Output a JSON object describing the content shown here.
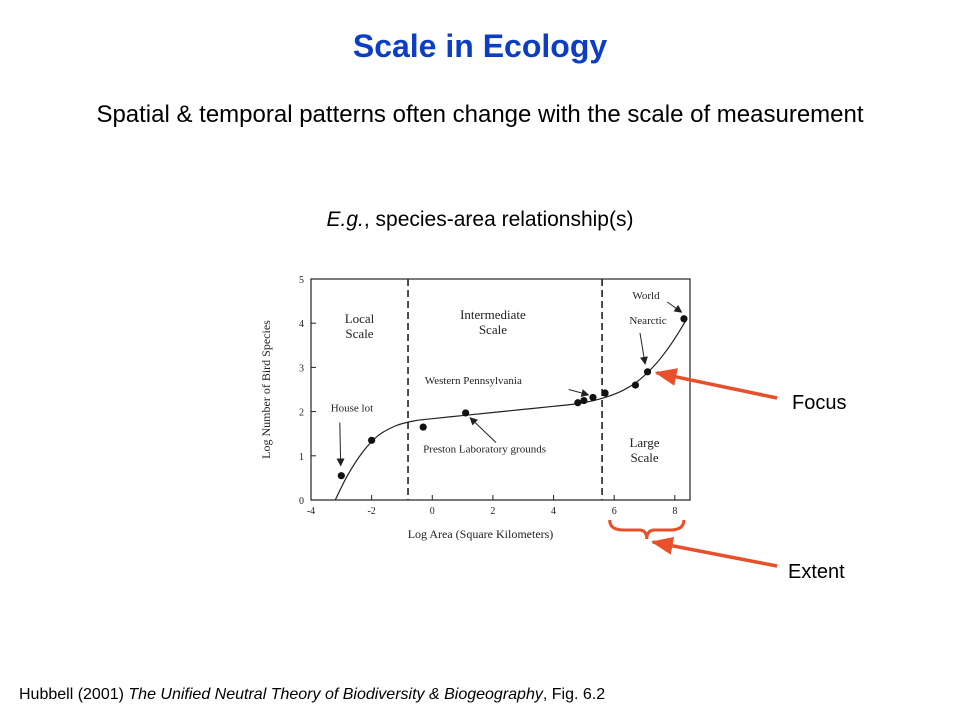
{
  "slide": {
    "title": "Scale in Ecology",
    "subtitle": "Spatial & temporal patterns often change with the scale of measurement",
    "example_italic": "E.g.",
    "example_rest": ", species-area relationship(s)"
  },
  "callouts": {
    "focus": "Focus",
    "extent": "Extent"
  },
  "citation": {
    "prefix": "Hubbell (2001) ",
    "book": "The Unified Neutral Theory of Biodiversity & Biogeography",
    "suffix": ", Fig. 6.2"
  },
  "colors": {
    "title": "#0b3ec4",
    "arrow": "#e8502c"
  },
  "chart_data": {
    "type": "scatter",
    "xlabel": "Log Area (Square Kilometers)",
    "ylabel": "Log Number of Bird Species",
    "xlim": [
      -4,
      8.5
    ],
    "ylim": [
      0,
      5
    ],
    "xticks": [
      -4,
      -2,
      0,
      2,
      4,
      6,
      8
    ],
    "yticks": [
      0,
      1,
      2,
      3,
      4,
      5
    ],
    "grid": false,
    "regions": [
      {
        "label": "Local Scale",
        "x_start": -4,
        "x_end": -0.8
      },
      {
        "label": "Intermediate Scale",
        "x_start": -0.8,
        "x_end": 5.6
      },
      {
        "label": "Large Scale",
        "x_start": 5.6,
        "x_end": 8.5
      }
    ],
    "boundaries": [
      -0.8,
      5.6
    ],
    "points": [
      {
        "x": -3.0,
        "y": 0.55
      },
      {
        "x": -2.0,
        "y": 1.35
      },
      {
        "x": -0.3,
        "y": 1.65
      },
      {
        "x": 1.1,
        "y": 1.97
      },
      {
        "x": 4.8,
        "y": 2.2
      },
      {
        "x": 5.0,
        "y": 2.25
      },
      {
        "x": 5.3,
        "y": 2.32
      },
      {
        "x": 5.7,
        "y": 2.42
      },
      {
        "x": 6.7,
        "y": 2.6
      },
      {
        "x": 7.1,
        "y": 2.9
      },
      {
        "x": 8.3,
        "y": 4.1
      }
    ],
    "curve": [
      {
        "x": -3.2,
        "y": 0
      },
      {
        "x": -2.8,
        "y": 0.55
      },
      {
        "x": -2.3,
        "y": 1.08
      },
      {
        "x": -1.8,
        "y": 1.45
      },
      {
        "x": -1.2,
        "y": 1.68
      },
      {
        "x": -0.6,
        "y": 1.79
      },
      {
        "x": 0,
        "y": 1.84
      },
      {
        "x": 1,
        "y": 1.91
      },
      {
        "x": 2,
        "y": 1.98
      },
      {
        "x": 3,
        "y": 2.05
      },
      {
        "x": 4,
        "y": 2.12
      },
      {
        "x": 4.8,
        "y": 2.18
      },
      {
        "x": 5.5,
        "y": 2.28
      },
      {
        "x": 6.2,
        "y": 2.45
      },
      {
        "x": 6.8,
        "y": 2.7
      },
      {
        "x": 7.4,
        "y": 3.1
      },
      {
        "x": 7.9,
        "y": 3.55
      },
      {
        "x": 8.4,
        "y": 4.1
      }
    ],
    "annotations": [
      {
        "label": "House lot",
        "x": -3.0,
        "y": 0.55
      },
      {
        "label": "Preston Laboratory grounds",
        "x": 1.1,
        "y": 1.97
      },
      {
        "label": "Western Pennsylvania",
        "x": 5.3,
        "y": 2.32
      },
      {
        "label": "Nearctic",
        "x": 7.1,
        "y": 2.9
      },
      {
        "label": "World",
        "x": 8.3,
        "y": 4.1
      }
    ]
  }
}
